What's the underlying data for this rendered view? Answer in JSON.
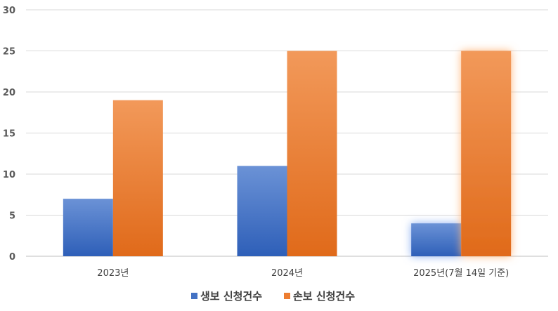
{
  "chart_data": {
    "type": "bar",
    "title": "",
    "xlabel": "",
    "ylabel": "",
    "categories": [
      "2023년",
      "2024년",
      "2025년(7월 14일 기준)"
    ],
    "series": [
      {
        "name": "생보 신청건수",
        "values": [
          7,
          11,
          4
        ],
        "color": "#4472C4"
      },
      {
        "name": "손보 신청건수",
        "values": [
          19,
          25,
          25
        ],
        "color": "#ED7D31"
      }
    ],
    "ylim": [
      0,
      30
    ],
    "yticks": [
      0,
      5,
      10,
      15,
      20,
      25,
      30
    ],
    "grid": true,
    "legend_position": "bottom",
    "highlighted_category": "2025년(7월 14일 기준)"
  }
}
